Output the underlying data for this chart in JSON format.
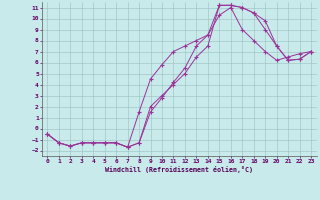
{
  "xlabel": "Windchill (Refroidissement éolien,°C)",
  "xlim": [
    -0.5,
    23.5
  ],
  "ylim": [
    -2.5,
    11.5
  ],
  "xticks": [
    0,
    1,
    2,
    3,
    4,
    5,
    6,
    7,
    8,
    9,
    10,
    11,
    12,
    13,
    14,
    15,
    16,
    17,
    18,
    19,
    20,
    21,
    22,
    23
  ],
  "yticks": [
    -2,
    -1,
    0,
    1,
    2,
    3,
    4,
    5,
    6,
    7,
    8,
    9,
    10,
    11
  ],
  "line_color": "#993399",
  "bg_color": "#c8eaea",
  "grid_color": "#9bbfbf",
  "line1_x": [
    0,
    1,
    2,
    3,
    4,
    5,
    6,
    7,
    8,
    9,
    10,
    11,
    12,
    13,
    14,
    15,
    16,
    17,
    18,
    19,
    20,
    21,
    22,
    23
  ],
  "line1_y": [
    -0.5,
    -1.3,
    -1.6,
    -1.3,
    -1.3,
    -1.3,
    -1.3,
    -1.7,
    -1.3,
    2.0,
    3.0,
    4.0,
    5.0,
    6.5,
    7.5,
    11.2,
    11.2,
    11.0,
    10.5,
    9.0,
    7.5,
    6.2,
    6.3,
    7.0
  ],
  "line2_x": [
    0,
    1,
    2,
    3,
    4,
    5,
    6,
    7,
    8,
    9,
    10,
    11,
    12,
    13,
    14,
    15,
    16,
    17,
    18,
    19,
    20,
    21,
    22,
    23
  ],
  "line2_y": [
    -0.5,
    -1.3,
    -1.6,
    -1.3,
    -1.3,
    -1.3,
    -1.3,
    -1.7,
    1.5,
    4.5,
    5.8,
    7.0,
    7.5,
    8.0,
    8.5,
    10.3,
    11.0,
    9.0,
    8.0,
    7.0,
    6.2,
    6.5,
    6.8,
    7.0
  ],
  "line3_x": [
    0,
    1,
    2,
    3,
    4,
    5,
    6,
    7,
    8,
    9,
    10,
    11,
    12,
    13,
    14,
    15,
    16,
    17,
    18,
    19,
    20,
    21,
    22,
    23
  ],
  "line3_y": [
    -0.5,
    -1.3,
    -1.6,
    -1.3,
    -1.3,
    -1.3,
    -1.3,
    -1.7,
    -1.3,
    1.5,
    2.8,
    4.2,
    5.5,
    7.5,
    8.5,
    11.2,
    11.2,
    11.0,
    10.5,
    9.8,
    7.5,
    6.2,
    6.3,
    7.0
  ]
}
